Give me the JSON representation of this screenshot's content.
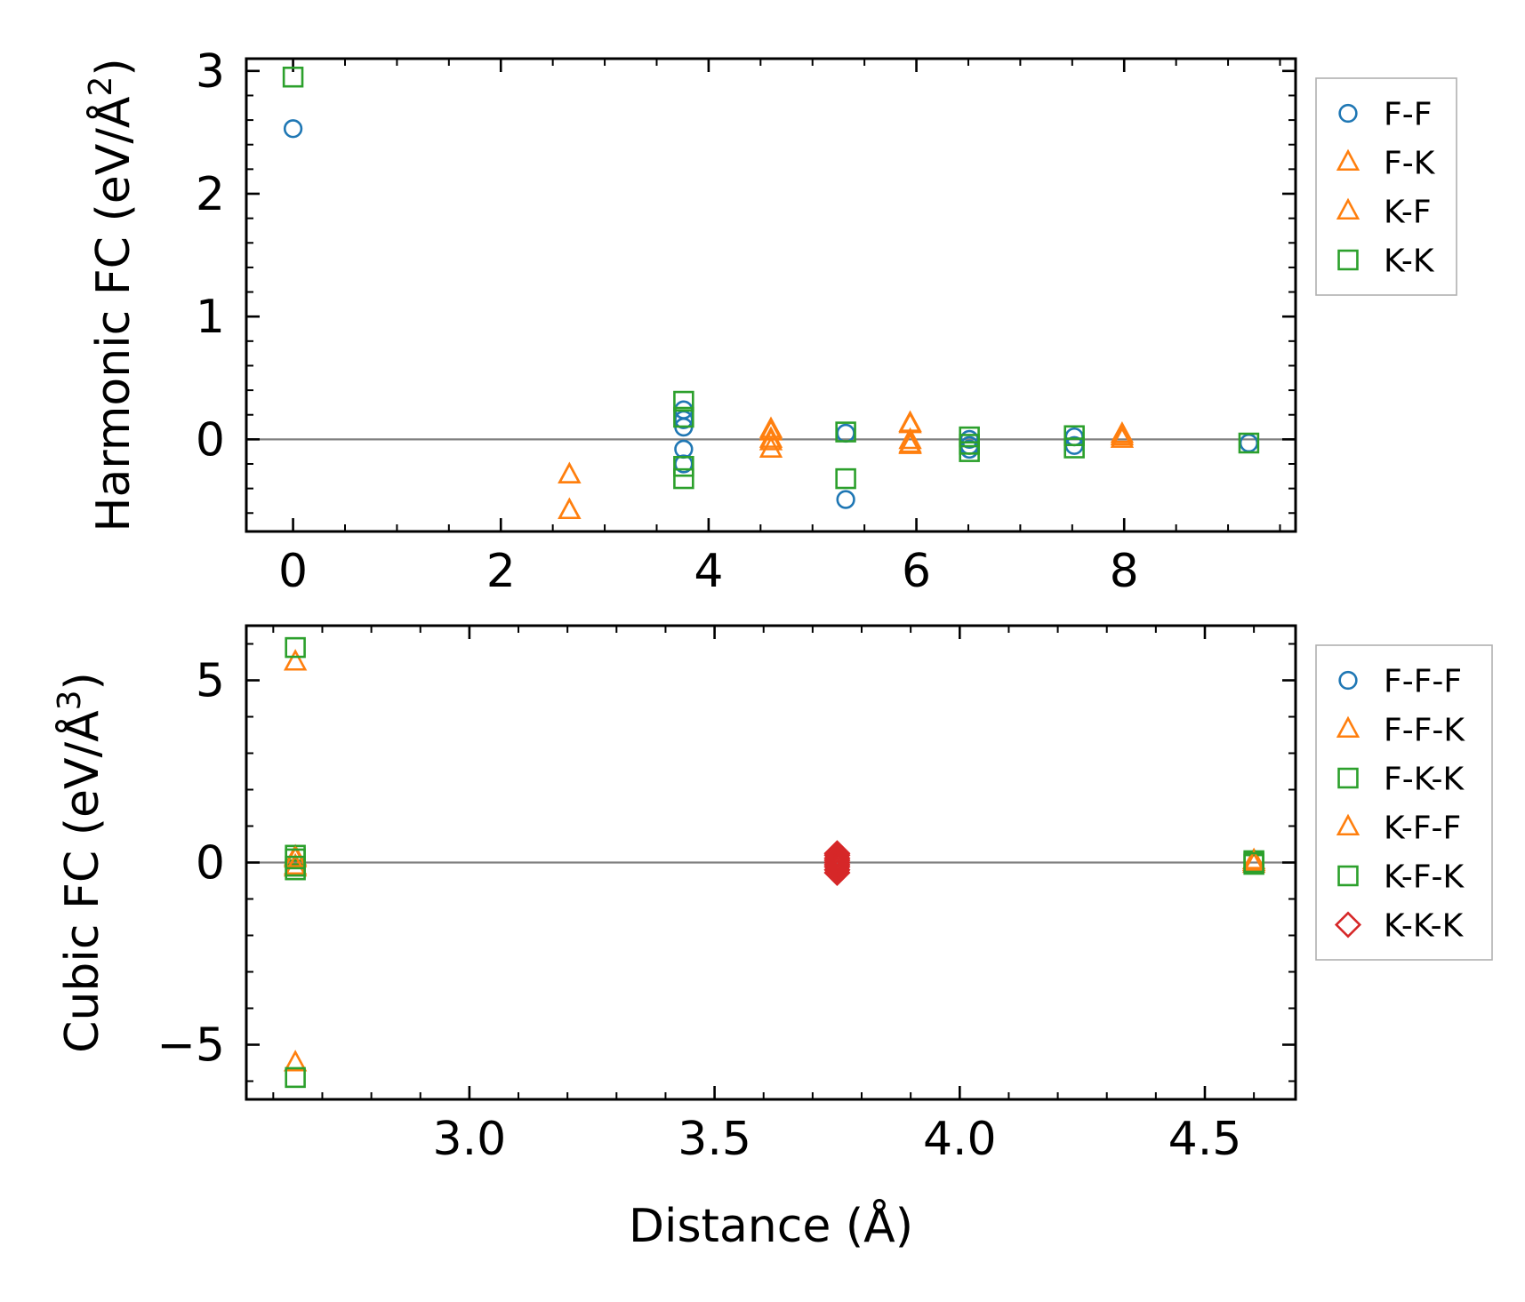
{
  "chart_data": [
    {
      "type": "scatter",
      "id": "harmonic",
      "ylabel": "Harmonic FC (eV/Å²)",
      "ylabel_main": "Harmonic FC (eV/Å",
      "ylabel_sup": "2",
      "ylabel_close": ")",
      "xlim": [
        -0.45,
        9.65
      ],
      "ylim": [
        -0.75,
        3.1
      ],
      "xticks": [
        0,
        2,
        4,
        6,
        8
      ],
      "xtick_labels": [
        "0",
        "2",
        "4",
        "6",
        "8"
      ],
      "yticks": [
        0,
        1,
        2,
        3
      ],
      "ytick_labels": [
        "0",
        "1",
        "2",
        "3"
      ],
      "xminor_step": 0.5,
      "yminor_step": 0.2,
      "zero_line": true,
      "legend_position": "outside-right",
      "series": [
        {
          "name": "F-F",
          "label": "F-F",
          "marker": "circle",
          "color": "#1f77b4",
          "x": [
            0,
            3.76,
            3.76,
            3.76,
            3.76,
            3.76,
            5.32,
            5.32,
            6.51,
            6.51,
            6.51,
            7.52,
            7.52,
            9.2
          ],
          "y": [
            2.53,
            0.24,
            0.1,
            -0.08,
            -0.2,
            0.16,
            0.05,
            -0.49,
            0.0,
            -0.05,
            -0.08,
            0.02,
            -0.05,
            -0.03
          ]
        },
        {
          "name": "F-K",
          "label": "F-K",
          "marker": "triangle",
          "color": "#ff7f0e",
          "x": [
            2.66,
            2.66,
            4.6,
            4.6,
            4.6,
            5.94,
            5.94,
            5.94,
            7.98,
            7.98
          ],
          "y": [
            -0.29,
            -0.58,
            0.08,
            0.0,
            -0.08,
            0.13,
            -0.01,
            -0.05,
            0.04,
            0.0
          ]
        },
        {
          "name": "K-F",
          "label": "K-F",
          "marker": "triangle",
          "color": "#ff7f0e",
          "x": [
            2.66,
            2.66,
            4.6,
            4.6,
            5.94,
            5.94,
            7.98
          ],
          "y": [
            -0.29,
            -0.58,
            0.06,
            -0.02,
            0.12,
            -0.04,
            0.02
          ]
        },
        {
          "name": "K-K",
          "label": "K-K",
          "marker": "square",
          "color": "#2ca02c",
          "x": [
            0,
            3.76,
            3.76,
            3.76,
            3.76,
            5.32,
            5.32,
            6.51,
            6.51,
            6.51,
            7.52,
            7.52,
            9.2
          ],
          "y": [
            2.95,
            0.31,
            0.18,
            -0.22,
            -0.32,
            0.06,
            -0.32,
            0.02,
            -0.04,
            -0.1,
            0.03,
            -0.07,
            -0.03
          ]
        }
      ]
    },
    {
      "type": "scatter",
      "id": "cubic",
      "ylabel": "Cubic FC (eV/Å³)",
      "ylabel_main": "Cubic FC (eV/Å",
      "ylabel_sup": "3",
      "ylabel_close": ")",
      "xlabel": "Distance (Å)",
      "xlim": [
        2.545,
        4.685
      ],
      "ylim": [
        -6.5,
        6.5
      ],
      "xticks": [
        3.0,
        3.5,
        4.0,
        4.5
      ],
      "xtick_labels": [
        "3.0",
        "3.5",
        "4.0",
        "4.5"
      ],
      "yticks": [
        -5,
        0,
        5
      ],
      "ytick_labels": [
        "−5",
        "0",
        "5"
      ],
      "xminor_step": 0.1,
      "yminor_step": 1,
      "zero_line": true,
      "legend_position": "outside-right",
      "series": [
        {
          "name": "F-F-F",
          "label": "F-F-F",
          "marker": "circle",
          "color": "#1f77b4",
          "x": [],
          "y": []
        },
        {
          "name": "F-F-K",
          "label": "F-F-K",
          "marker": "triangle",
          "color": "#ff7f0e",
          "x": [
            2.645,
            2.645,
            2.645,
            2.645,
            4.6,
            4.6
          ],
          "y": [
            5.5,
            0.15,
            -0.15,
            -5.5,
            0.05,
            -0.05
          ]
        },
        {
          "name": "F-K-K",
          "label": "F-K-K",
          "marker": "square",
          "color": "#2ca02c",
          "x": [
            2.645,
            2.645,
            2.645,
            2.645,
            4.6,
            4.6
          ],
          "y": [
            5.9,
            0.2,
            -0.2,
            -5.9,
            0.05,
            -0.05
          ]
        },
        {
          "name": "K-F-F",
          "label": "K-F-F",
          "marker": "triangle",
          "color": "#ff7f0e",
          "x": [
            2.645,
            2.645,
            4.6
          ],
          "y": [
            0.1,
            -0.1,
            0.0
          ]
        },
        {
          "name": "K-F-K",
          "label": "K-F-K",
          "marker": "square",
          "color": "#2ca02c",
          "x": [
            2.645,
            2.645,
            4.6
          ],
          "y": [
            0.1,
            -0.1,
            0.0
          ]
        },
        {
          "name": "K-K-K",
          "label": "K-K-K",
          "marker": "diamond",
          "color": "#d62728",
          "x": [
            3.75,
            3.75,
            3.75,
            3.75,
            3.75,
            3.75,
            3.75,
            3.75,
            3.75
          ],
          "y": [
            0.25,
            0.2,
            0.12,
            0.06,
            0.0,
            -0.06,
            -0.12,
            -0.2,
            -0.28
          ]
        }
      ]
    }
  ]
}
